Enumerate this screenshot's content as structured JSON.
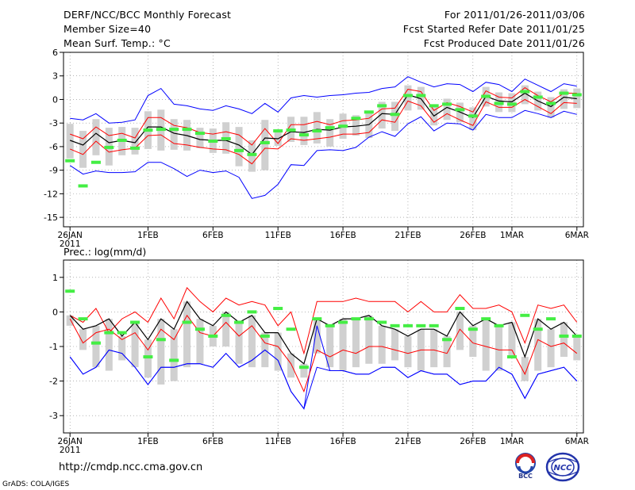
{
  "header": {
    "title": "DERF/NCC/BCC Monthly Forecast",
    "member_size": "Member Size=40",
    "variable": "Mean Surf. Temp.: °C",
    "period": "For 2011/01/26-2011/03/06",
    "fcst_started": "Fcst Started Refer Date 2011/01/25",
    "fcst_produced": "Fcst Produced Date 2011/01/26"
  },
  "footer": {
    "url": "http://cmdp.ncc.cma.gov.cn",
    "grads": "GrADS: COLA/IGES",
    "logo_left_text": "BCC",
    "logo_right_text": "NCC"
  },
  "colors": {
    "envelope": "#0000ff",
    "spread": "#ff0000",
    "mean": "#000000",
    "box": "#d0d0d0",
    "observed": "#44ee44",
    "grid": "#888888"
  },
  "chart_data": [
    {
      "type": "line",
      "title": "Mean Surf. Temp.: °C",
      "ylim": [
        -16.2,
        6
      ],
      "yticks": [
        6,
        3,
        0,
        -3,
        -6,
        -9,
        -12,
        -15
      ],
      "xlim": [
        -0.5,
        39.5
      ],
      "xticks": [
        {
          "day": 0,
          "label": "26JAN"
        },
        {
          "day": 6,
          "label": "1FEB"
        },
        {
          "day": 11,
          "label": "6FEB"
        },
        {
          "day": 16,
          "label": "11FEB"
        },
        {
          "day": 21,
          "label": "16FEB"
        },
        {
          "day": 26,
          "label": "21FEB"
        },
        {
          "day": 31,
          "label": "26FEB"
        },
        {
          "day": 34,
          "label": "1MAR"
        },
        {
          "day": 39,
          "label": "6MAR"
        }
      ],
      "year_label": "2011",
      "grid": "dotted",
      "series": [
        {
          "name": "max",
          "values": [
            -2.4,
            -2.6,
            -1.8,
            -3,
            -2.9,
            -2.6,
            0.5,
            1.4,
            -0.6,
            -0.8,
            -1.2,
            -1.4,
            -0.8,
            -1.2,
            -1.8,
            -0.5,
            -1.6,
            0.2,
            0.5,
            0.3,
            0.5,
            0.6,
            0.8,
            0.9,
            1.4,
            1.6,
            2.9,
            2.2,
            1.6,
            2.0,
            1.9,
            1.0,
            2.2,
            1.9,
            1.0,
            2.6,
            1.8,
            1.0,
            2.0,
            1.7
          ]
        },
        {
          "name": "upper",
          "values": [
            -4.4,
            -5.0,
            -3.5,
            -4.6,
            -4.3,
            -4.9,
            -2.3,
            -2.3,
            -3.3,
            -3.6,
            -4.2,
            -4.4,
            -4.1,
            -4.5,
            -5.8,
            -3.7,
            -5.6,
            -3.2,
            -3.2,
            -2.8,
            -3.2,
            -2.7,
            -2.6,
            -2.4,
            -1.2,
            -1.1,
            1.3,
            1.0,
            -1.4,
            -0.4,
            -0.9,
            -1.6,
            1.1,
            0.3,
            0.2,
            1.5,
            0.5,
            -0.3,
            0.8,
            0.8
          ]
        },
        {
          "name": "mean",
          "values": [
            -5.2,
            -5.8,
            -4.3,
            -5.5,
            -5.2,
            -5.5,
            -3.5,
            -3.5,
            -4.3,
            -4.6,
            -5.1,
            -5.2,
            -5.2,
            -5.8,
            -7.0,
            -4.9,
            -5.0,
            -4.1,
            -4.2,
            -3.8,
            -3.9,
            -3.5,
            -3.4,
            -3.2,
            -1.8,
            -1.9,
            0.6,
            0.1,
            -2.1,
            -1.0,
            -1.6,
            -2.3,
            0.4,
            -0.2,
            -0.3,
            0.8,
            -0.2,
            -0.9,
            0.3,
            0.1
          ]
        },
        {
          "name": "lower",
          "values": [
            -6.3,
            -7.0,
            -5.3,
            -6.7,
            -6.4,
            -6.2,
            -4.6,
            -4.5,
            -5.6,
            -5.8,
            -6.1,
            -6.3,
            -6.4,
            -7.0,
            -8.2,
            -6.2,
            -6.3,
            -5.0,
            -5.2,
            -5.0,
            -4.8,
            -4.4,
            -4.4,
            -4.2,
            -2.6,
            -2.9,
            -0.2,
            -0.8,
            -2.9,
            -1.8,
            -2.6,
            -3.3,
            -0.3,
            -1.0,
            -1.0,
            0.0,
            -0.9,
            -1.8,
            -0.4,
            -0.5
          ]
        },
        {
          "name": "min",
          "values": [
            -8.4,
            -9.5,
            -9.1,
            -9.3,
            -9.3,
            -9.2,
            -8.0,
            -8.0,
            -8.8,
            -9.8,
            -9.0,
            -9.3,
            -9.1,
            -9.9,
            -12.6,
            -12.2,
            -10.8,
            -8.3,
            -8.4,
            -6.5,
            -6.4,
            -6.5,
            -6.1,
            -4.8,
            -4.1,
            -4.7,
            -3.1,
            -2.2,
            -4.0,
            -3.0,
            -3.1,
            -3.9,
            -1.9,
            -2.3,
            -2.3,
            -1.4,
            -1.8,
            -2.3,
            -1.5,
            -1.9
          ]
        }
      ],
      "box_low": [
        -7.5,
        -8.7,
        -7.1,
        -8.4,
        -7.1,
        -7.0,
        -6.3,
        -6.5,
        -6.4,
        -6.5,
        -6.2,
        -6.8,
        -6.9,
        -8.5,
        -9.2,
        -9.0,
        -5.9,
        -5.4,
        -5.8,
        -5.6,
        -6.0,
        -5.0,
        -4.6,
        -4.9,
        -3.7,
        -4.0,
        -1.4,
        -1.3,
        -3.3,
        -2.6,
        -2.9,
        -3.9,
        -0.9,
        -1.6,
        -1.6,
        -0.6,
        -1.4,
        -2.3,
        -1.2,
        -1.1
      ],
      "box_high": [
        -3.1,
        -4.0,
        -2.5,
        -3.6,
        -3.5,
        -3.6,
        -1.5,
        -1.3,
        -2.5,
        -2.6,
        -3.6,
        -3.7,
        -2.9,
        -3.5,
        -5.2,
        -2.6,
        -4.2,
        -2.2,
        -2.2,
        -1.6,
        -2.5,
        -1.8,
        -2.0,
        -1.6,
        -0.3,
        -0.3,
        1.8,
        1.6,
        -0.9,
        0.1,
        -0.4,
        -1.0,
        1.6,
        0.9,
        0.8,
        1.8,
        1.0,
        0.3,
        1.3,
        1.4
      ],
      "observed": [
        -7.8,
        -11.0,
        -8.0,
        -6.1,
        -5.2,
        -6.2,
        -3.9,
        -3.8,
        -3.8,
        -3.8,
        -4.3,
        -5.3,
        -5.0,
        -6.5,
        -7.0,
        -5.5,
        -4.0,
        -3.9,
        -4.5,
        -4.0,
        -3.6,
        -3.4,
        -2.4,
        -1.6,
        -0.8,
        -1.9,
        0.5,
        0.5,
        -0.8,
        -0.6,
        -1.3,
        -2.1,
        0.4,
        -0.5,
        -0.6,
        1.0,
        0.3,
        -0.5,
        0.8,
        0.6
      ]
    },
    {
      "type": "line",
      "title": "Prec.: log(mm/d)",
      "ylim": [
        -3.5,
        1.5
      ],
      "yticks": [
        1,
        0,
        -1,
        -2,
        -3
      ],
      "xlim": [
        -0.5,
        39.5
      ],
      "xticks": [
        {
          "day": 0,
          "label": "26JAN"
        },
        {
          "day": 6,
          "label": "1FEB"
        },
        {
          "day": 11,
          "label": "6FEB"
        },
        {
          "day": 16,
          "label": "11FEB"
        },
        {
          "day": 21,
          "label": "16FEB"
        },
        {
          "day": 26,
          "label": "21FEB"
        },
        {
          "day": 31,
          "label": "26FEB"
        },
        {
          "day": 34,
          "label": "1MAR"
        },
        {
          "day": 39,
          "label": "6MAR"
        }
      ],
      "year_label": "2011",
      "grid": "dotted",
      "series": [
        {
          "name": "max",
          "values": [
            -1.3,
            -1.8,
            -1.6,
            -1.1,
            -1.2,
            -1.6,
            -2.1,
            -1.6,
            -1.6,
            -1.5,
            -1.5,
            -1.6,
            -1.2,
            -1.6,
            -1.4,
            -1.1,
            -1.4,
            -2.3,
            -2.8,
            -0.4,
            -1.7,
            -1.7,
            -1.8,
            -1.8,
            -1.6,
            -1.6,
            -1.9,
            -1.7,
            -1.8,
            -1.8,
            -2.1,
            -2.0,
            -2.0,
            -1.6,
            -1.8,
            -2.5,
            -1.8,
            -1.7,
            -1.6,
            -2.0
          ]
        },
        {
          "name": "upper",
          "values": [
            -0.1,
            -0.3,
            0.1,
            -0.6,
            -0.2,
            0.0,
            -0.3,
            0.4,
            -0.2,
            0.7,
            0.3,
            0.0,
            0.4,
            0.2,
            0.3,
            0.2,
            -0.4,
            0.0,
            -1.2,
            0.3,
            0.3,
            0.3,
            0.4,
            0.3,
            0.3,
            0.3,
            0.0,
            0.3,
            0.0,
            0.0,
            0.5,
            0.1,
            0.1,
            0.2,
            0.0,
            -0.9,
            0.2,
            0.1,
            0.2,
            -0.3
          ]
        },
        {
          "name": "mean",
          "values": [
            -0.1,
            -0.5,
            -0.4,
            -0.2,
            -0.7,
            -0.3,
            -0.8,
            -0.2,
            -0.5,
            0.3,
            -0.2,
            -0.4,
            0.0,
            -0.3,
            -0.1,
            -0.6,
            -0.6,
            -1.2,
            -1.5,
            -0.2,
            -0.4,
            -0.2,
            -0.2,
            -0.1,
            -0.4,
            -0.5,
            -0.7,
            -0.5,
            -0.5,
            -0.7,
            0.0,
            -0.4,
            -0.2,
            -0.4,
            -0.3,
            -1.3,
            -0.2,
            -0.5,
            -0.3,
            -0.7
          ]
        },
        {
          "name": "lower",
          "values": [
            -0.2,
            -0.9,
            -0.6,
            -0.5,
            -0.8,
            -0.6,
            -1.1,
            -0.5,
            -0.8,
            -0.1,
            -0.6,
            -0.7,
            -0.3,
            -0.7,
            -0.4,
            -0.9,
            -1.0,
            -1.5,
            -2.3,
            -1.1,
            -1.3,
            -1.1,
            -1.2,
            -1.0,
            -1.0,
            -1.1,
            -1.2,
            -1.1,
            -1.1,
            -1.2,
            -0.5,
            -0.9,
            -1.0,
            -1.1,
            -1.1,
            -1.8,
            -0.8,
            -1.0,
            -0.9,
            -1.2
          ]
        },
        {
          "name": "min",
          "values": [
            -1.3,
            -1.8,
            -1.6,
            -1.1,
            -1.2,
            -1.6,
            -2.1,
            -1.6,
            -1.6,
            -1.5,
            -1.5,
            -1.6,
            -1.2,
            -1.6,
            -1.4,
            -1.1,
            -1.4,
            -2.3,
            -2.8,
            -1.6,
            -1.7,
            -1.7,
            -1.8,
            -1.8,
            -1.6,
            -1.6,
            -1.9,
            -1.7,
            -1.8,
            -1.8,
            -2.1,
            -2.0,
            -2.0,
            -1.6,
            -1.8,
            -2.5,
            -1.8,
            -1.7,
            -1.6,
            -2.0
          ]
        }
      ],
      "box_low": [
        -0.4,
        -1.1,
        -1.6,
        -1.7,
        -1.4,
        -1.6,
        -1.9,
        -2.1,
        -2.0,
        -1.6,
        -1.5,
        -1.0,
        -1.0,
        -1.5,
        -1.6,
        -1.6,
        -1.7,
        -1.9,
        -1.9,
        -1.2,
        -1.6,
        -1.7,
        -1.6,
        -1.5,
        -1.5,
        -1.4,
        -1.6,
        -1.7,
        -1.6,
        -1.6,
        -1.1,
        -1.3,
        -1.7,
        -1.7,
        -1.3,
        -2.0,
        -1.7,
        -1.6,
        -1.3,
        -1.4
      ],
      "box_high": [
        -0.1,
        -0.5,
        -0.4,
        -0.2,
        -0.7,
        -0.3,
        -0.8,
        -0.2,
        -0.5,
        0.3,
        -0.2,
        -0.4,
        0.0,
        -0.3,
        -0.1,
        -0.6,
        -0.6,
        -1.2,
        -1.5,
        -0.2,
        -0.4,
        -0.2,
        -0.2,
        -0.1,
        -0.4,
        -0.5,
        -0.7,
        -0.5,
        -0.5,
        -0.7,
        0.0,
        -0.4,
        -0.2,
        -0.4,
        -0.3,
        -1.3,
        -0.2,
        -0.5,
        -0.3,
        -0.7
      ],
      "observed": [
        0.6,
        -0.2,
        -0.9,
        -0.6,
        -0.6,
        -0.3,
        -1.3,
        -0.8,
        -1.4,
        -0.3,
        -0.5,
        -0.7,
        -0.1,
        -0.3,
        0.0,
        -0.7,
        0.1,
        -0.5,
        -1.6,
        -0.2,
        -0.4,
        -0.3,
        -0.2,
        -0.2,
        -0.3,
        -0.4,
        -0.4,
        -0.4,
        -0.4,
        -0.8,
        0.1,
        -0.5,
        -0.2,
        -0.4,
        -1.3,
        -0.1,
        -0.5,
        -0.2,
        -0.7,
        -0.7
      ]
    }
  ]
}
